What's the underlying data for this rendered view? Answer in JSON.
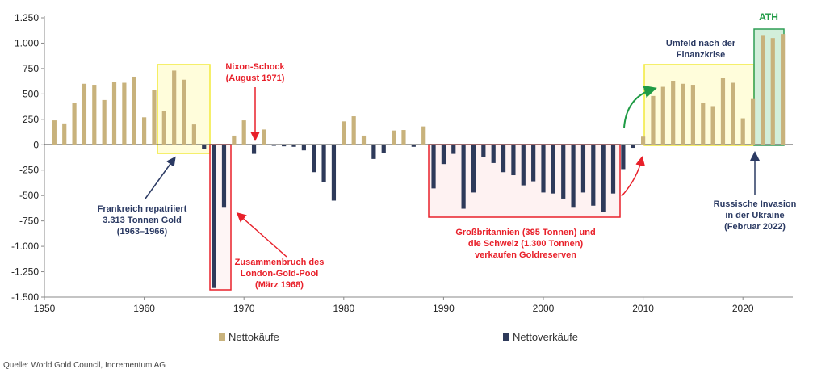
{
  "colors": {
    "purchases": "#c8b27c",
    "sales": "#2e3a5a",
    "highlight_yellow": "#f7f28a",
    "highlight_red": "#e8202a",
    "highlight_green": "#2e9e55",
    "text_blue": "#2b3a63"
  },
  "chart_data": {
    "type": "bar",
    "xlabel": "",
    "ylabel": "",
    "ylim": [
      -1500,
      1250
    ],
    "xlim": [
      1950,
      2025
    ],
    "x_ticks": [
      1950,
      1960,
      1970,
      1980,
      1990,
      2000,
      2010,
      2020
    ],
    "y_ticks": [
      1250,
      1000,
      750,
      500,
      250,
      0,
      -250,
      -500,
      -750,
      -1000,
      -1250,
      -1500
    ],
    "y_tick_labels": [
      "1.250",
      "1.000",
      "750",
      "500",
      "250",
      "0",
      "-250",
      "-500",
      "-750",
      "-1.000",
      "-1.250",
      "-1.500"
    ],
    "x_tick_labels": [
      "1950",
      "1960",
      "1970",
      "1980",
      "1990",
      "2000",
      "2010",
      "2020"
    ],
    "years": [
      1951,
      1952,
      1953,
      1954,
      1955,
      1956,
      1957,
      1958,
      1959,
      1960,
      1961,
      1962,
      1963,
      1964,
      1965,
      1966,
      1967,
      1968,
      1969,
      1970,
      1971,
      1972,
      1973,
      1974,
      1975,
      1976,
      1977,
      1978,
      1979,
      1980,
      1981,
      1982,
      1983,
      1984,
      1985,
      1986,
      1987,
      1988,
      1989,
      1990,
      1991,
      1992,
      1993,
      1994,
      1995,
      1996,
      1997,
      1998,
      1999,
      2000,
      2001,
      2002,
      2003,
      2004,
      2005,
      2006,
      2007,
      2008,
      2009,
      2010,
      2011,
      2012,
      2013,
      2014,
      2015,
      2016,
      2017,
      2018,
      2019,
      2020,
      2021,
      2022,
      2023,
      2024
    ],
    "values": [
      240,
      210,
      410,
      600,
      590,
      440,
      620,
      610,
      670,
      270,
      540,
      330,
      730,
      640,
      200,
      -40,
      -1410,
      -620,
      90,
      240,
      -90,
      150,
      -10,
      -15,
      -20,
      -55,
      -270,
      -370,
      -550,
      230,
      280,
      90,
      -140,
      -80,
      140,
      145,
      -20,
      180,
      -430,
      -190,
      -90,
      -630,
      -470,
      -120,
      -180,
      -270,
      -300,
      -400,
      -360,
      -470,
      -480,
      -530,
      -620,
      -470,
      -600,
      -660,
      -480,
      -240,
      -30,
      80,
      480,
      570,
      630,
      600,
      590,
      410,
      380,
      660,
      610,
      260,
      450,
      1080,
      1050,
      1090
    ],
    "series": [
      {
        "name": "Nettokäufe",
        "sign": "positive"
      },
      {
        "name": "Nettoverkäufe",
        "sign": "negative"
      }
    ]
  },
  "annotations": {
    "nixon": [
      "Nixon-Schock",
      "(August 1971)"
    ],
    "frankreich": [
      "Frankreich repatriiert",
      "3.313 Tonnen Gold",
      "(1963–1966)"
    ],
    "london": [
      "Zusammenbruch des",
      "London-Gold-Pool",
      "(März 1968)"
    ],
    "gb": [
      "Großbritannien (395 Tonnen) und",
      "die Schweiz (1.300 Tonnen)",
      "verkaufen Goldreserven"
    ],
    "umfeld": [
      "Umfeld nach der",
      "Finanzkrise"
    ],
    "ath": "ATH",
    "russland": [
      "Russische Invasion",
      "in der Ukraine",
      "(Februar 2022)"
    ]
  },
  "legend": {
    "purchases": "Nettokäufe",
    "sales": "Nettoverkäufe"
  },
  "source": "Quelle: World Gold Council, Incrementum AG"
}
